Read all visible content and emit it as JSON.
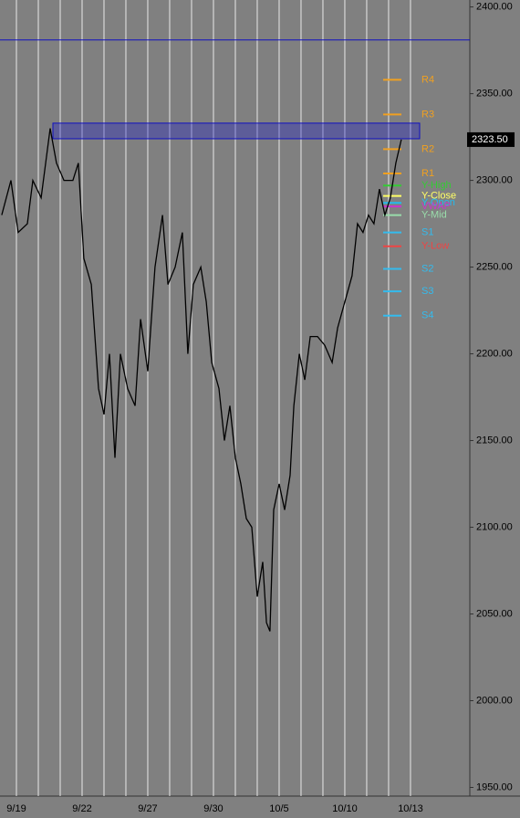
{
  "chart_data": {
    "type": "line",
    "day_labels": [
      "9/19",
      null,
      null,
      "9/22",
      null,
      null,
      "9/27",
      null,
      null,
      "9/30",
      null,
      null,
      "10/5",
      null,
      null,
      "10/10",
      null,
      null,
      "10/13"
    ],
    "xlim": [
      -0.75,
      20.71
    ],
    "ylim": [
      1945,
      2404
    ],
    "yticks": [
      {
        "value": 1950,
        "label": "1950.00"
      },
      {
        "value": 2000,
        "label": "2000.00"
      },
      {
        "value": 2050,
        "label": "2050.00"
      },
      {
        "value": 2100,
        "label": "2100.00"
      },
      {
        "value": 2150,
        "label": "2150.00"
      },
      {
        "value": 2200,
        "label": "2200.00"
      },
      {
        "value": 2250,
        "label": "2250.00"
      },
      {
        "value": 2300,
        "label": "2300.00"
      },
      {
        "value": 2350,
        "label": "2350.00"
      },
      {
        "value": 2400,
        "label": "2400.00"
      }
    ],
    "series": [
      {
        "color": "#000000",
        "x": [
          -0.67,
          -0.25,
          0.08,
          0.5,
          0.75,
          1.13,
          1.54,
          1.83,
          2.17,
          2.58,
          2.83,
          3.08,
          3.42,
          3.75,
          4,
          4.25,
          4.5,
          4.75,
          5.08,
          5.42,
          5.67,
          6,
          6.33,
          6.67,
          6.92,
          7.25,
          7.58,
          7.83,
          8.08,
          8.42,
          8.67,
          8.92,
          9.25,
          9.5,
          9.75,
          10,
          10.25,
          10.5,
          10.75,
          11,
          11.25,
          11.42,
          11.58,
          11.75,
          12,
          12.25,
          12.5,
          12.67,
          12.92,
          13.17,
          13.42,
          13.75,
          14.08,
          14.42,
          14.67,
          15,
          15.33,
          15.58,
          15.83,
          16.08,
          16.33,
          16.58,
          16.83,
          17.08,
          17.33,
          17.58
        ],
        "values": [
          2280,
          2300,
          2270,
          2275,
          2300,
          2290,
          2330,
          2310,
          2300,
          2300,
          2310,
          2255,
          2240,
          2180,
          2165,
          2200,
          2140,
          2200,
          2180,
          2170,
          2220,
          2190,
          2250,
          2280,
          2240,
          2250,
          2270,
          2200,
          2240,
          2250,
          2230,
          2195,
          2180,
          2150,
          2170,
          2140,
          2125,
          2105,
          2100,
          2060,
          2080,
          2045,
          2040,
          2110,
          2125,
          2110,
          2130,
          2170,
          2200,
          2185,
          2210,
          2210,
          2205,
          2195,
          2215,
          2230,
          2245,
          2275,
          2270,
          2280,
          2275,
          2295,
          2280,
          2290,
          2310,
          2323.5
        ]
      }
    ],
    "last_price": {
      "value": 2323.5,
      "label": "2323.50"
    },
    "ref_line": 2381,
    "zone": [
      2324,
      2333
    ],
    "levels": [
      {
        "name": "R4",
        "value": 2358,
        "color": "#f0a020"
      },
      {
        "name": "R3",
        "value": 2338,
        "color": "#f0a020"
      },
      {
        "name": "R2",
        "value": 2318,
        "color": "#f0a020"
      },
      {
        "name": "R1",
        "value": 2304,
        "color": "#f0a020"
      },
      {
        "name": "Y-High",
        "value": 2297,
        "color": "#33cc33"
      },
      {
        "name": "Y-Close",
        "value": 2291,
        "color": "#ffff66"
      },
      {
        "name": "Y-Open",
        "value": 2287,
        "color": "#22bbee"
      },
      {
        "name": "VWAP",
        "value": 2285,
        "color": "#cc33cc"
      },
      {
        "name": "Y-Mid",
        "value": 2280,
        "color": "#99ddaa"
      },
      {
        "name": "S1",
        "value": 2270,
        "color": "#33bbee"
      },
      {
        "name": "Y-Low",
        "value": 2262,
        "color": "#ee4444"
      },
      {
        "name": "S2",
        "value": 2249,
        "color": "#33bbee"
      },
      {
        "name": "S3",
        "value": 2236,
        "color": "#33bbee"
      },
      {
        "name": "S4",
        "value": 2222,
        "color": "#33bbee"
      }
    ]
  }
}
